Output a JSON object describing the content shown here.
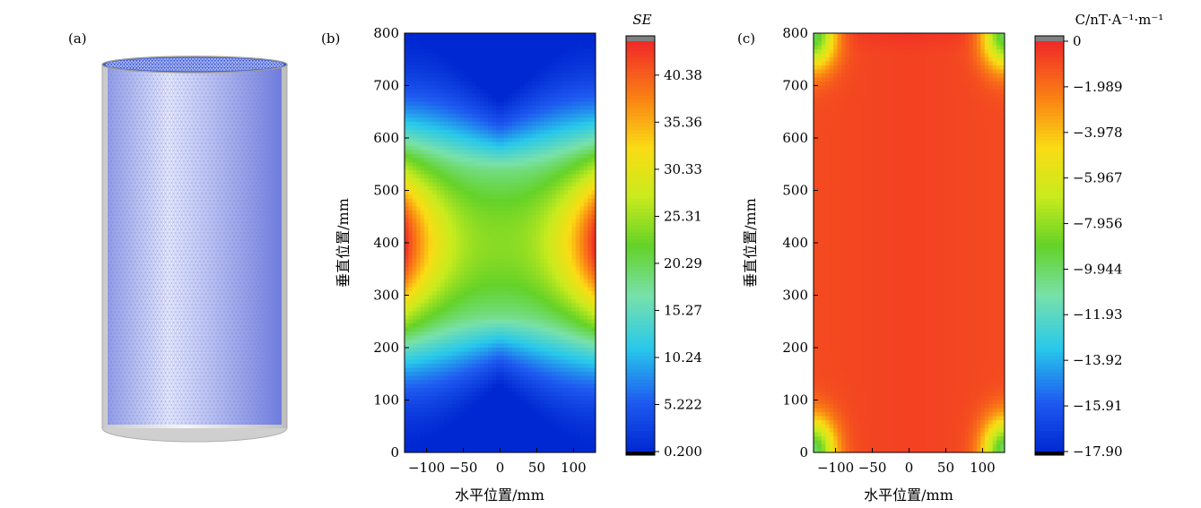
{
  "panels": {
    "a": {
      "label": "(a)"
    },
    "b": {
      "label": "(b)"
    },
    "c": {
      "label": "(c)"
    }
  },
  "chart_data": [
    {
      "id": "b",
      "type": "heatmap",
      "title": "",
      "xlabel": "水平位置/mm",
      "ylabel": "垂直位置/mm",
      "xlim": [
        -130,
        130
      ],
      "ylim": [
        0,
        800
      ],
      "xticks": [
        -100,
        -50,
        0,
        50,
        100
      ],
      "xtick_labels": [
        "−100",
        "−50",
        "0",
        "50",
        "100"
      ],
      "yticks": [
        0,
        100,
        200,
        300,
        400,
        500,
        600,
        700,
        800
      ],
      "yticklabels": [
        "0",
        "100",
        "200",
        "300",
        "400",
        "500",
        "600",
        "700",
        "800"
      ],
      "colorbar": {
        "title": "SE",
        "min": 0.2,
        "max": 44,
        "ticks": [
          40.38,
          35.36,
          30.33,
          25.31,
          20.29,
          15.27,
          10.24,
          5.222,
          0.2
        ],
        "tick_labels": [
          "40.38",
          "35.36",
          "30.33",
          "25.31",
          "20.29",
          "15.27",
          "10.24",
          "5.222",
          "0.200"
        ],
        "over_color": "#808080",
        "under_color": "#000000"
      },
      "description": "Shielding effectiveness map: maximum (~44) at the side walls near y=400 mm, saddle ~24 at the center, dropping to ~0.2 near the top and bottom ends.",
      "sample_points": [
        {
          "x": 0,
          "y": 400,
          "value": 24
        },
        {
          "x": 130,
          "y": 400,
          "value": 44
        },
        {
          "x": -130,
          "y": 400,
          "value": 44
        },
        {
          "x": 0,
          "y": 600,
          "value": 12
        },
        {
          "x": 0,
          "y": 200,
          "value": 12
        },
        {
          "x": 0,
          "y": 750,
          "value": 0.2
        },
        {
          "x": 0,
          "y": 50,
          "value": 0.2
        }
      ]
    },
    {
      "id": "c",
      "type": "heatmap",
      "title": "",
      "xlabel": "水平位置/mm",
      "ylabel": "垂直位置/mm",
      "xlim": [
        -130,
        130
      ],
      "ylim": [
        0,
        800
      ],
      "xticks": [
        -100,
        -50,
        0,
        50,
        100
      ],
      "xtick_labels": [
        "−100",
        "−50",
        "0",
        "50",
        "100"
      ],
      "yticks": [
        0,
        100,
        200,
        300,
        400,
        500,
        600,
        700,
        800
      ],
      "yticklabels": [
        "0",
        "100",
        "200",
        "300",
        "400",
        "500",
        "600",
        "700",
        "800"
      ],
      "colorbar": {
        "title": "C/nT·A⁻¹·m⁻¹",
        "min": -17.9,
        "max": 0,
        "ticks": [
          0,
          -1.989,
          -3.978,
          -5.967,
          -7.956,
          -9.944,
          -11.93,
          -13.92,
          -15.91,
          -17.9
        ],
        "tick_labels": [
          "0",
          "−1.989",
          "−3.978",
          "−5.967",
          "−7.956",
          "−9.944",
          "−11.93",
          "−13.92",
          "−15.91",
          "−17.90"
        ],
        "over_color": "#808080",
        "under_color": "#000000"
      },
      "description": "Coefficient map: nearly uniform around −0.7 in the interior, with stronger (≈ −8) lobes at the four corners.",
      "sample_points": [
        {
          "x": 0,
          "y": 400,
          "value": -0.8
        },
        {
          "x": 0,
          "y": 780,
          "value": -0.3
        },
        {
          "x": 120,
          "y": 760,
          "value": -8
        },
        {
          "x": -120,
          "y": 760,
          "value": -8
        },
        {
          "x": 120,
          "y": 40,
          "value": -8
        },
        {
          "x": -120,
          "y": 40,
          "value": -8
        }
      ]
    }
  ],
  "colors": {
    "mesh_blue": "#6e7fe6",
    "cylinder_gray": "#d8d8d8"
  }
}
